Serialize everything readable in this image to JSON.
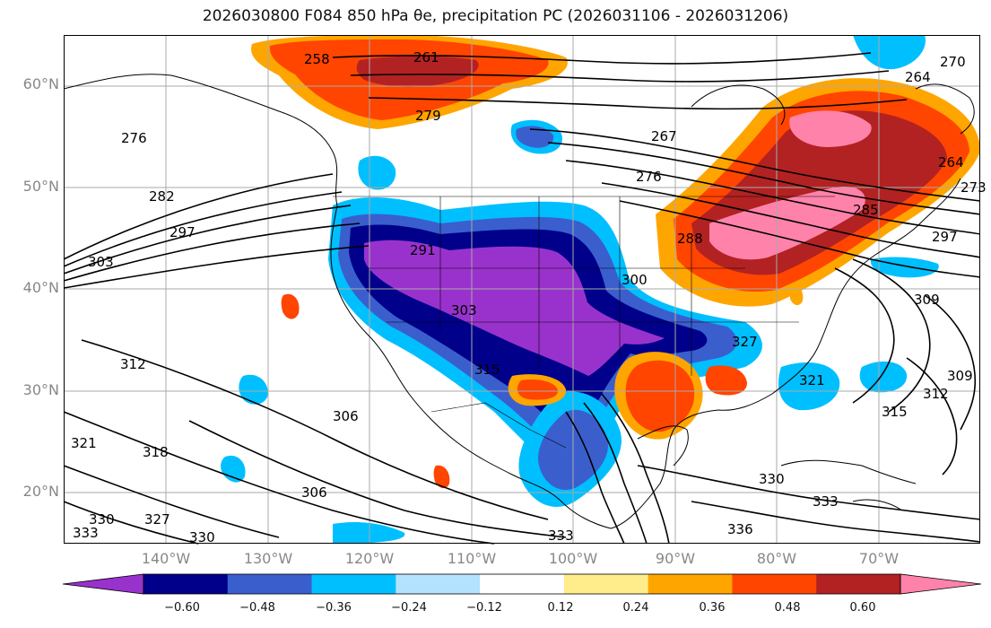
{
  "title": "2026030800 F084 850 hPa θe, precipitation PC (2026031106 - 2026031206)",
  "lat_labels": [
    "60°N",
    "50°N",
    "40°N",
    "30°N",
    "20°N"
  ],
  "lon_labels": [
    "140°W",
    "130°W",
    "120°W",
    "110°W",
    "100°W",
    "90°W",
    "80°W",
    "70°W"
  ],
  "colorbar": {
    "colors": [
      "#9932cc",
      "#00008b",
      "#3a5fcd",
      "#00bfff",
      "#b3e2ff",
      "#ffffff",
      "#ffec8b",
      "#ffa500",
      "#ff4500",
      "#b22222",
      "#ff82ab"
    ],
    "tick_labels": [
      "−0.60",
      "−0.48",
      "−0.36",
      "−0.24",
      "−0.12",
      "0.12",
      "0.24",
      "0.36",
      "0.48",
      "0.60"
    ]
  },
  "contour_labels": [
    "258",
    "261",
    "279",
    "267",
    "276",
    "264",
    "270",
    "264",
    "282",
    "297",
    "303",
    "291",
    "288",
    "300",
    "309",
    "303",
    "312",
    "306",
    "315",
    "327",
    "321",
    "318",
    "321",
    "306",
    "327",
    "330",
    "333",
    "330",
    "333",
    "336",
    "330",
    "333",
    "315",
    "312",
    "309",
    "273",
    "276",
    "285",
    "297"
  ]
}
